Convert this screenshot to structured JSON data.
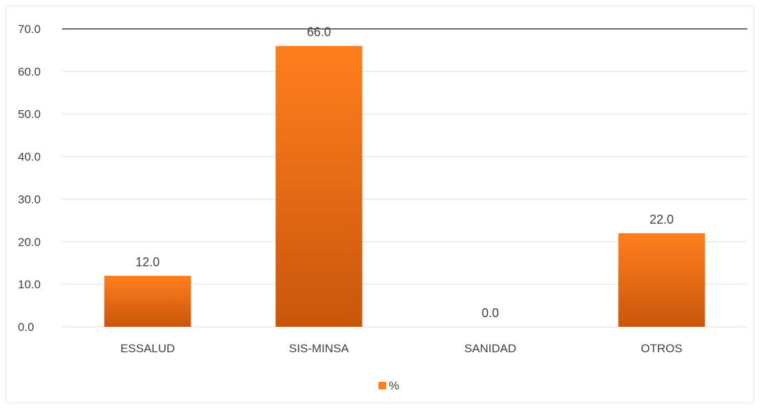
{
  "chart_data": {
    "type": "bar",
    "categories": [
      "ESSALUD",
      "SIS-MINSA",
      "SANIDAD",
      "OTROS"
    ],
    "series": [
      {
        "name": "%",
        "values": [
          12.0,
          66.0,
          0.0,
          22.0
        ]
      }
    ],
    "title": "",
    "xlabel": "",
    "ylabel": "",
    "ylim": [
      0,
      70
    ],
    "yticks": [
      "0.0",
      "10.0",
      "20.0",
      "30.0",
      "40.0",
      "50.0",
      "60.0",
      "70.0"
    ],
    "data_labels": [
      "12.0",
      "66.0",
      "0.0",
      "22.0"
    ],
    "grid": true,
    "legend_position": "bottom",
    "colors": {
      "bar_top": "#ff7f1e",
      "bar_bottom": "#c9560c",
      "grid": "#dcdfe6",
      "axis": "#2f3e55",
      "text": "#404040"
    }
  }
}
